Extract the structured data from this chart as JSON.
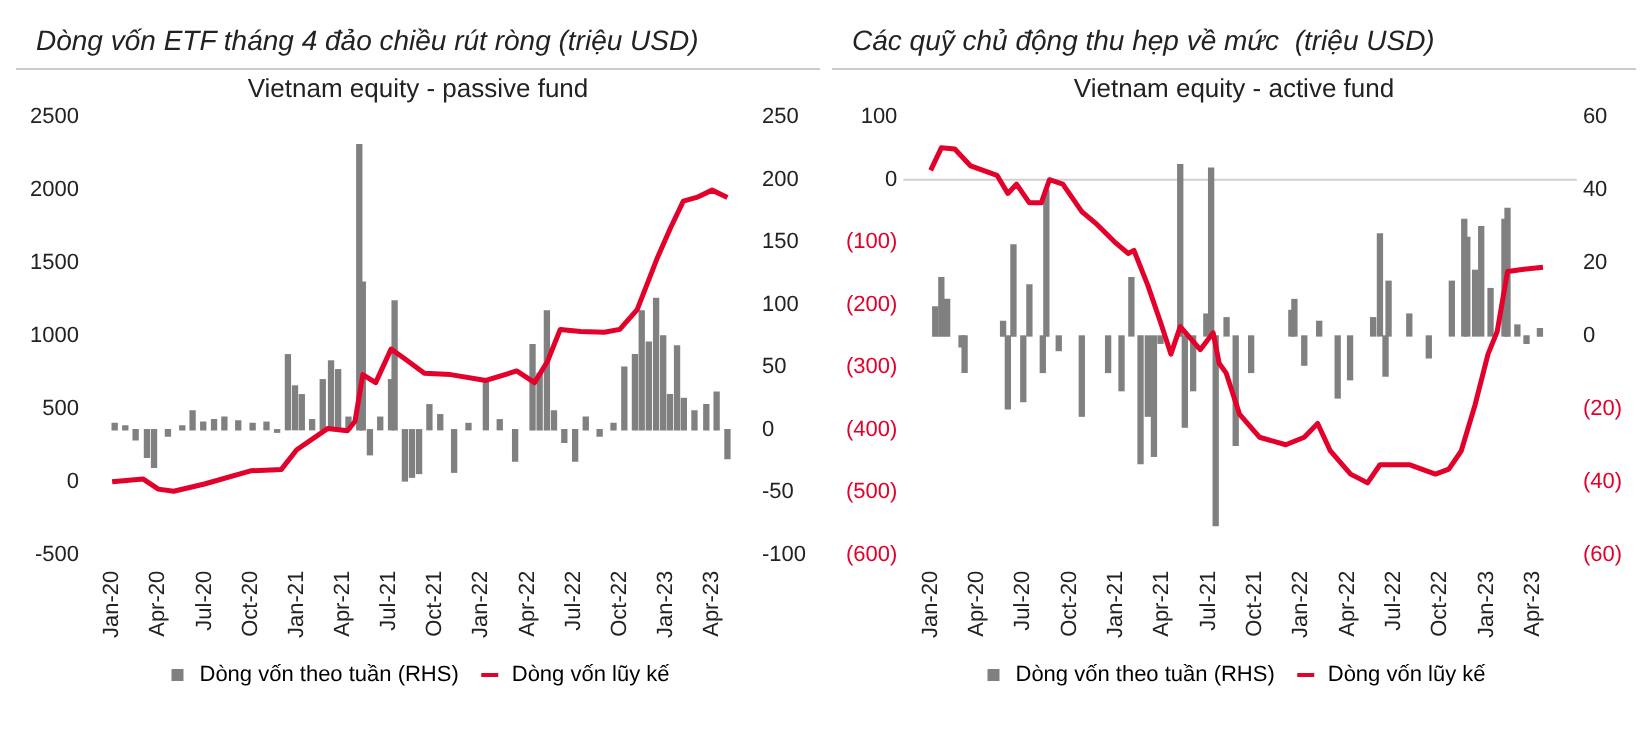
{
  "chart_data": [
    {
      "type": "bar",
      "title": "Dòng vốn ETF tháng 4 đảo chiều rút ròng (triệu USD)",
      "subtitle": "Vietnam equity - passive fund",
      "legend": "bottom",
      "xlim": [
        "2019-12-25",
        "2023-05-10"
      ],
      "xticks": [
        {
          "value": "2020-01",
          "label": "Jan-20"
        },
        {
          "value": "2020-04",
          "label": "Apr-20"
        },
        {
          "value": "2020-07",
          "label": "Jul-20"
        },
        {
          "value": "2020-10",
          "label": "Oct-20"
        },
        {
          "value": "2021-01",
          "label": "Jan-21"
        },
        {
          "value": "2021-04",
          "label": "Apr-21"
        },
        {
          "value": "2021-07",
          "label": "Jul-21"
        },
        {
          "value": "2021-10",
          "label": "Oct-21"
        },
        {
          "value": "2022-01",
          "label": "Jan-22"
        },
        {
          "value": "2022-04",
          "label": "Apr-22"
        },
        {
          "value": "2022-07",
          "label": "Jul-22"
        },
        {
          "value": "2022-10",
          "label": "Oct-22"
        },
        {
          "value": "2023-01",
          "label": "Jan-23"
        },
        {
          "value": "2023-04",
          "label": "Apr-23"
        }
      ],
      "ylim": [
        -500,
        2500
      ],
      "yticks": [
        -500,
        0,
        500,
        1000,
        1500,
        2000,
        2500
      ],
      "y2lim": [
        -100,
        250
      ],
      "y2ticks": [
        -100,
        -50,
        0,
        50,
        100,
        150,
        200,
        250
      ],
      "series": [
        {
          "name": "Dòng vốn theo tuần (RHS)",
          "axis": "y2",
          "color": "#808080",
          "x": [
            "2020-01-06",
            "2020-01-27",
            "2020-02-17",
            "2020-03-09",
            "2020-03-23",
            "2020-04-20",
            "2020-05-18",
            "2020-06-08",
            "2020-06-29",
            "2020-07-20",
            "2020-08-10",
            "2020-09-07",
            "2020-10-05",
            "2020-11-02",
            "2020-11-23",
            "2020-12-14",
            "2020-12-28",
            "2021-01-11",
            "2021-02-01",
            "2021-02-22",
            "2021-03-08",
            "2021-03-22",
            "2021-04-12",
            "2021-05-03",
            "2021-05-10",
            "2021-05-24",
            "2021-06-14",
            "2021-07-05",
            "2021-07-12",
            "2021-08-02",
            "2021-08-16",
            "2021-08-30",
            "2021-09-20",
            "2021-10-11",
            "2021-11-08",
            "2021-12-06",
            "2022-01-10",
            "2022-02-07",
            "2022-03-07",
            "2022-04-11",
            "2022-04-25",
            "2022-05-09",
            "2022-05-23",
            "2022-06-13",
            "2022-07-04",
            "2022-07-25",
            "2022-08-22",
            "2022-09-19",
            "2022-10-10",
            "2022-10-31",
            "2022-11-14",
            "2022-11-28",
            "2022-12-12",
            "2022-12-26",
            "2023-01-09",
            "2023-01-23",
            "2023-02-06",
            "2023-02-27",
            "2023-03-20",
            "2023-04-10",
            "2023-05-01"
          ],
          "values": [
            5,
            3,
            -8,
            -22,
            -30,
            -5,
            3,
            15,
            6,
            8,
            10,
            7,
            5,
            6,
            -2,
            60,
            35,
            28,
            8,
            40,
            55,
            48,
            10,
            228,
            118,
            -20,
            10,
            40,
            103,
            -41,
            -38,
            -35,
            20,
            12,
            -34,
            5,
            40,
            8,
            -25,
            68,
            45,
            95,
            15,
            -10,
            -25,
            10,
            -5,
            5,
            50,
            60,
            95,
            70,
            105,
            75,
            28,
            67,
            25,
            15,
            20,
            30,
            -23
          ]
        },
        {
          "name": "Dòng vốn lũy kế",
          "type": "line",
          "axis": "y",
          "color": "#e3002b",
          "marker": "none",
          "x": [
            "2020-01-01",
            "2020-03-01",
            "2020-04-01",
            "2020-05-01",
            "2020-07-01",
            "2020-10-01",
            "2020-12-01",
            "2021-01-01",
            "2021-03-01",
            "2021-04-10",
            "2021-04-25",
            "2021-05-10",
            "2021-06-05",
            "2021-07-05",
            "2021-08-01",
            "2021-09-10",
            "2021-11-01",
            "2022-01-10",
            "2022-03-10",
            "2022-04-15",
            "2022-05-10",
            "2022-06-05",
            "2022-07-15",
            "2022-09-01",
            "2022-10-01",
            "2022-11-05",
            "2022-12-15",
            "2023-01-10",
            "2023-02-05",
            "2023-03-01",
            "2023-04-01",
            "2023-05-01"
          ],
          "values": [
            0,
            20,
            -50,
            -65,
            -15,
            75,
            85,
            220,
            365,
            350,
            415,
            735,
            680,
            910,
            845,
            745,
            735,
            695,
            760,
            680,
            825,
            1045,
            1030,
            1025,
            1045,
            1180,
            1540,
            1740,
            1925,
            1950,
            2000,
            1950
          ]
        }
      ]
    },
    {
      "type": "bar",
      "title": "Các quỹ chủ động thu hẹp về mức  (triệu USD)",
      "subtitle": "Vietnam equity - active fund",
      "legend": "bottom",
      "xlim": [
        "2019-12-25",
        "2023-05-10"
      ],
      "xticks": [
        {
          "value": "2020-01",
          "label": "Jan-20"
        },
        {
          "value": "2020-04",
          "label": "Apr-20"
        },
        {
          "value": "2020-07",
          "label": "Jul-20"
        },
        {
          "value": "2020-10",
          "label": "Oct-20"
        },
        {
          "value": "2021-01",
          "label": "Jan-21"
        },
        {
          "value": "2021-04",
          "label": "Apr-21"
        },
        {
          "value": "2021-07",
          "label": "Jul-21"
        },
        {
          "value": "2021-10",
          "label": "Oct-21"
        },
        {
          "value": "2022-01",
          "label": "Jan-22"
        },
        {
          "value": "2022-04",
          "label": "Apr-22"
        },
        {
          "value": "2022-07",
          "label": "Jul-22"
        },
        {
          "value": "2022-10",
          "label": "Oct-22"
        },
        {
          "value": "2023-01",
          "label": "Jan-23"
        },
        {
          "value": "2023-04",
          "label": "Apr-23"
        }
      ],
      "ylim": [
        -600,
        100
      ],
      "yticks": [
        {
          "value": -600,
          "label": "(600)"
        },
        {
          "value": -500,
          "label": "(500)"
        },
        {
          "value": -400,
          "label": "(400)"
        },
        {
          "value": -300,
          "label": "(300)"
        },
        {
          "value": -200,
          "label": "(200)"
        },
        {
          "value": -100,
          "label": "(100)"
        },
        0,
        100
      ],
      "y2lim": [
        -60,
        60
      ],
      "y2ticks": [
        {
          "value": -60,
          "label": "(60)"
        },
        {
          "value": -40,
          "label": "(40)"
        },
        {
          "value": -20,
          "label": "(20)"
        },
        0,
        20,
        40,
        60
      ],
      "ref_lines": [
        {
          "axis": "y",
          "value": 0,
          "color": "#d0d0d0"
        }
      ],
      "series": [
        {
          "name": "Dòng vốn theo tuần (RHS)",
          "axis": "y2",
          "color": "#808080",
          "x": [
            "2020-01-10",
            "2020-01-22",
            "2020-02-03",
            "2020-03-01",
            "2020-03-07",
            "2020-05-22",
            "2020-06-01",
            "2020-06-12",
            "2020-07-01",
            "2020-07-13",
            "2020-08-09",
            "2020-08-16",
            "2020-09-10",
            "2020-10-25",
            "2020-12-16",
            "2021-01-12",
            "2021-02-01",
            "2021-02-19",
            "2021-03-03",
            "2021-03-15",
            "2021-03-28",
            "2021-05-06",
            "2021-05-15",
            "2021-06-01",
            "2021-06-27",
            "2021-07-06",
            "2021-07-15",
            "2021-08-06",
            "2021-08-24",
            "2021-09-24",
            "2021-12-12",
            "2021-12-18",
            "2022-01-07",
            "2022-02-06",
            "2022-03-12",
            "2022-04-06",
            "2022-05-21",
            "2022-06-04",
            "2022-06-15",
            "2022-06-21",
            "2022-08-01",
            "2022-09-09",
            "2022-10-24",
            "2022-11-18",
            "2022-11-24",
            "2022-12-09",
            "2022-12-21",
            "2023-01-09",
            "2023-02-06",
            "2023-02-12",
            "2023-03-01",
            "2023-03-19",
            "2023-04-15"
          ],
          "values": [
            8,
            16,
            10,
            -3,
            -10,
            4,
            -20,
            25,
            -18,
            14,
            -10,
            40,
            -4,
            -22,
            -10,
            -15,
            16,
            -35,
            -22,
            -33,
            -2,
            47,
            -25,
            -15,
            6,
            46,
            -52,
            5,
            -30,
            -10,
            7,
            10,
            -8,
            4,
            -17,
            -12,
            5,
            28,
            -11,
            15,
            6,
            -6,
            15,
            32,
            27,
            18,
            30,
            13,
            32,
            35,
            3,
            -2,
            2
          ]
        },
        {
          "name": "Dòng vốn lũy kế",
          "type": "line",
          "axis": "y",
          "color": "#e3002b",
          "marker": "none",
          "x": [
            "2020-01-01",
            "2020-01-22",
            "2020-02-18",
            "2020-03-19",
            "2020-05-10",
            "2020-06-01",
            "2020-06-18",
            "2020-07-13",
            "2020-08-06",
            "2020-08-22",
            "2020-09-18",
            "2020-10-25",
            "2020-11-21",
            "2020-12-28",
            "2021-01-25",
            "2021-02-06",
            "2021-03-03",
            "2021-03-28",
            "2021-04-18",
            "2021-05-06",
            "2021-06-15",
            "2021-07-10",
            "2021-07-22",
            "2021-08-05",
            "2021-09-01",
            "2021-10-10",
            "2021-12-01",
            "2022-01-07",
            "2022-02-03",
            "2022-02-28",
            "2022-04-07",
            "2022-05-10",
            "2022-06-04",
            "2022-08-01",
            "2022-09-22",
            "2022-10-18",
            "2022-11-12",
            "2022-12-09",
            "2023-01-04",
            "2023-01-22",
            "2023-02-12",
            "2023-03-07",
            "2023-04-21"
          ],
          "values": [
            15,
            51,
            49,
            22,
            7,
            -22,
            -7,
            -37,
            -37,
            0,
            -7,
            -51,
            -69,
            -99,
            -118,
            -113,
            -169,
            -228,
            -279,
            -235,
            -272,
            -245,
            -294,
            -309,
            -375,
            -412,
            -424,
            -412,
            -390,
            -434,
            -471,
            -485,
            -456,
            -456,
            -471,
            -463,
            -434,
            -360,
            -279,
            -243,
            -147,
            -144,
            -140
          ]
        }
      ]
    }
  ]
}
